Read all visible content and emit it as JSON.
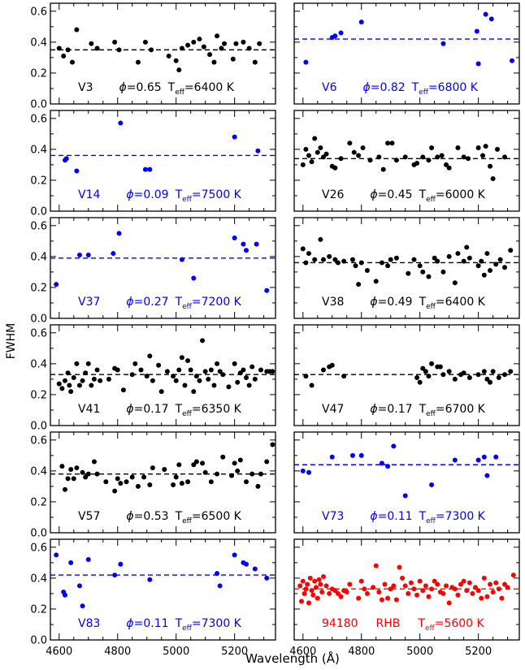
{
  "figure": {
    "ylabel": "FWHM",
    "xlabel": "Wavelength (Å)",
    "x_ticks": [
      4600,
      4800,
      5000,
      5200
    ],
    "y_ticks": [
      "0.0",
      "0.2",
      "0.4",
      "0.6"
    ],
    "colors": {
      "black": "#000000",
      "blue": "#0000ff",
      "red": "#ff0000"
    }
  },
  "chart_data": [
    {
      "type": "scatter",
      "star": "V3",
      "phase": "0.65",
      "teff": "6400",
      "color": "#000000",
      "mean_fwhm": 0.35,
      "xlim": [
        4570,
        5340
      ],
      "ylim": [
        0,
        0.62
      ],
      "x": [
        4600,
        4615,
        4630,
        4645,
        4660,
        4710,
        4730,
        4790,
        4805,
        4870,
        4895,
        4915,
        4975,
        5000,
        5010,
        5020,
        5040,
        5060,
        5080,
        5095,
        5115,
        5130,
        5140,
        5155,
        5165,
        5195,
        5205,
        5230,
        5250,
        5270,
        5285
      ],
      "y": [
        0.36,
        0.31,
        0.35,
        0.27,
        0.48,
        0.39,
        0.36,
        0.4,
        0.35,
        0.27,
        0.4,
        0.35,
        0.31,
        0.28,
        0.22,
        0.36,
        0.38,
        0.4,
        0.42,
        0.37,
        0.32,
        0.27,
        0.44,
        0.36,
        0.39,
        0.29,
        0.39,
        0.4,
        0.36,
        0.27,
        0.39
      ]
    },
    {
      "type": "scatter",
      "star": "V6",
      "phase": "0.82",
      "teff": "6800",
      "color": "#0000ff",
      "mean_fwhm": 0.42,
      "xlim": [
        4570,
        5340
      ],
      "ylim": [
        0,
        0.62
      ],
      "x": [
        4610,
        4700,
        4710,
        4730,
        4800,
        5080,
        5195,
        5200,
        5225,
        5245,
        5315
      ],
      "y": [
        0.27,
        0.43,
        0.44,
        0.46,
        0.53,
        0.39,
        0.47,
        0.26,
        0.58,
        0.55,
        0.28
      ]
    },
    {
      "type": "scatter",
      "star": "V14",
      "phase": "0.09",
      "teff": "7500",
      "color": "#0000ff",
      "mean_fwhm": 0.36,
      "xlim": [
        4570,
        5340
      ],
      "ylim": [
        0,
        0.62
      ],
      "x": [
        4620,
        4625,
        4660,
        4810,
        4895,
        4910,
        5200,
        5280
      ],
      "y": [
        0.33,
        0.34,
        0.26,
        0.57,
        0.27,
        0.27,
        0.48,
        0.39
      ]
    },
    {
      "type": "scatter",
      "star": "V26",
      "phase": "0.45",
      "teff": "6000",
      "color": "#000000",
      "mean_fwhm": 0.34,
      "xlim": [
        4570,
        5340
      ],
      "ylim": [
        0,
        0.62
      ],
      "x": [
        4600,
        4610,
        4620,
        4630,
        4640,
        4650,
        4660,
        4670,
        4680,
        4700,
        4710,
        4730,
        4760,
        4775,
        4790,
        4805,
        4830,
        4860,
        4875,
        4890,
        4905,
        4920,
        4950,
        4980,
        4990,
        5010,
        5030,
        5040,
        5060,
        5075,
        5090,
        5100,
        5130,
        5150,
        5165,
        5200,
        5215,
        5225,
        5240,
        5250,
        5265,
        5290
      ],
      "y": [
        0.3,
        0.4,
        0.36,
        0.32,
        0.47,
        0.38,
        0.41,
        0.35,
        0.37,
        0.29,
        0.28,
        0.34,
        0.44,
        0.38,
        0.36,
        0.41,
        0.33,
        0.35,
        0.27,
        0.44,
        0.44,
        0.33,
        0.35,
        0.3,
        0.31,
        0.35,
        0.33,
        0.41,
        0.35,
        0.36,
        0.3,
        0.28,
        0.41,
        0.35,
        0.34,
        0.41,
        0.36,
        0.42,
        0.29,
        0.21,
        0.4,
        0.35
      ]
    },
    {
      "type": "scatter",
      "star": "V37",
      "phase": "0.27",
      "teff": "7200",
      "color": "#0000ff",
      "mean_fwhm": 0.39,
      "xlim": [
        4570,
        5340
      ],
      "ylim": [
        0,
        0.62
      ],
      "x": [
        4590,
        4670,
        4700,
        4785,
        4805,
        5020,
        5060,
        5200,
        5230,
        5240,
        5275,
        5310
      ],
      "y": [
        0.22,
        0.41,
        0.41,
        0.42,
        0.55,
        0.38,
        0.26,
        0.52,
        0.48,
        0.44,
        0.48,
        0.18
      ]
    },
    {
      "type": "scatter",
      "star": "V38",
      "phase": "0.49",
      "teff": "6400",
      "color": "#000000",
      "mean_fwhm": 0.36,
      "xlim": [
        4570,
        5340
      ],
      "ylim": [
        0,
        0.62
      ],
      "x": [
        4600,
        4610,
        4620,
        4640,
        4660,
        4670,
        4690,
        4710,
        4720,
        4740,
        4770,
        4780,
        4790,
        4800,
        4820,
        4850,
        4870,
        4890,
        4900,
        4920,
        4960,
        4980,
        5000,
        5010,
        5030,
        5050,
        5060,
        5080,
        5100,
        5120,
        5130,
        5150,
        5160,
        5170,
        5200,
        5210,
        5220,
        5230,
        5240,
        5260,
        5275,
        5290,
        5310
      ],
      "y": [
        0.45,
        0.36,
        0.42,
        0.38,
        0.51,
        0.38,
        0.4,
        0.38,
        0.36,
        0.37,
        0.38,
        0.34,
        0.22,
        0.36,
        0.31,
        0.24,
        0.36,
        0.34,
        0.38,
        0.39,
        0.29,
        0.38,
        0.34,
        0.3,
        0.27,
        0.39,
        0.37,
        0.3,
        0.4,
        0.23,
        0.42,
        0.37,
        0.46,
        0.39,
        0.34,
        0.37,
        0.28,
        0.42,
        0.31,
        0.35,
        0.38,
        0.33,
        0.44
      ]
    },
    {
      "type": "scatter",
      "star": "V41",
      "phase": "0.17",
      "teff": "6350",
      "color": "#000000",
      "mean_fwhm": 0.33,
      "xlim": [
        4570,
        5340
      ],
      "ylim": [
        0,
        0.62
      ],
      "x": [
        4600,
        4610,
        4620,
        4630,
        4635,
        4640,
        4650,
        4660,
        4670,
        4680,
        4690,
        4700,
        4710,
        4720,
        4730,
        4740,
        4770,
        4790,
        4800,
        4820,
        4850,
        4860,
        4880,
        4900,
        4910,
        4920,
        4940,
        4950,
        4970,
        4990,
        5000,
        5010,
        5020,
        5030,
        5040,
        5050,
        5060,
        5070,
        5080,
        5090,
        5100,
        5110,
        5120,
        5130,
        5140,
        5150,
        5160,
        5180,
        5200,
        5210,
        5220,
        5230,
        5240,
        5250,
        5260,
        5270,
        5290,
        5310,
        5320,
        5330
      ],
      "y": [
        0.27,
        0.24,
        0.29,
        0.34,
        0.26,
        0.22,
        0.31,
        0.4,
        0.26,
        0.29,
        0.34,
        0.4,
        0.26,
        0.3,
        0.36,
        0.29,
        0.3,
        0.37,
        0.36,
        0.23,
        0.33,
        0.4,
        0.36,
        0.32,
        0.45,
        0.29,
        0.39,
        0.22,
        0.35,
        0.32,
        0.29,
        0.36,
        0.44,
        0.26,
        0.42,
        0.36,
        0.22,
        0.32,
        0.29,
        0.55,
        0.35,
        0.3,
        0.36,
        0.26,
        0.4,
        0.35,
        0.33,
        0.25,
        0.4,
        0.28,
        0.34,
        0.36,
        0.31,
        0.26,
        0.38,
        0.3,
        0.36,
        0.35,
        0.35,
        0.35
      ]
    },
    {
      "type": "scatter",
      "star": "V47",
      "phase": "0.17",
      "teff": "6700",
      "color": "#000000",
      "mean_fwhm": 0.33,
      "xlim": [
        4570,
        5340
      ],
      "ylim": [
        0,
        0.62
      ],
      "x": [
        4610,
        4630,
        4670,
        4690,
        4700,
        4740,
        4990,
        5000,
        5010,
        5020,
        5030,
        5040,
        5060,
        5070,
        5080,
        5100,
        5120,
        5140,
        5150,
        5170,
        5200,
        5220,
        5230,
        5240,
        5250,
        5270,
        5290,
        5310
      ],
      "y": [
        0.32,
        0.26,
        0.36,
        0.38,
        0.39,
        0.32,
        0.31,
        0.28,
        0.37,
        0.35,
        0.32,
        0.4,
        0.38,
        0.38,
        0.33,
        0.35,
        0.3,
        0.33,
        0.34,
        0.31,
        0.33,
        0.35,
        0.3,
        0.28,
        0.35,
        0.31,
        0.33,
        0.35
      ]
    },
    {
      "type": "scatter",
      "star": "V57",
      "phase": "0.53",
      "teff": "6500",
      "color": "#000000",
      "mean_fwhm": 0.38,
      "xlim": [
        4570,
        5340
      ],
      "ylim": [
        0,
        0.62
      ],
      "x": [
        4610,
        4620,
        4630,
        4640,
        4650,
        4660,
        4680,
        4690,
        4700,
        4720,
        4730,
        4760,
        4790,
        4800,
        4810,
        4830,
        4850,
        4870,
        4890,
        4910,
        4920,
        4960,
        4990,
        5000,
        5010,
        5020,
        5040,
        5060,
        5070,
        5090,
        5100,
        5120,
        5140,
        5160,
        5190,
        5200,
        5210,
        5220,
        5240,
        5260,
        5280,
        5290,
        5310,
        5330
      ],
      "y": [
        0.43,
        0.28,
        0.35,
        0.41,
        0.35,
        0.42,
        0.39,
        0.36,
        0.38,
        0.46,
        0.38,
        0.33,
        0.27,
        0.35,
        0.32,
        0.33,
        0.36,
        0.3,
        0.36,
        0.31,
        0.42,
        0.41,
        0.31,
        0.36,
        0.44,
        0.32,
        0.33,
        0.44,
        0.46,
        0.45,
        0.39,
        0.33,
        0.38,
        0.49,
        0.37,
        0.45,
        0.4,
        0.47,
        0.33,
        0.38,
        0.3,
        0.38,
        0.46,
        0.57
      ]
    },
    {
      "type": "scatter",
      "star": "V73",
      "phase": "0.11",
      "teff": "7300",
      "color": "#0000ff",
      "mean_fwhm": 0.44,
      "xlim": [
        4570,
        5340
      ],
      "ylim": [
        0,
        0.62
      ],
      "x": [
        4600,
        4620,
        4700,
        4770,
        4800,
        4870,
        4890,
        4910,
        4950,
        5040,
        5120,
        5200,
        5220,
        5230,
        5260
      ],
      "y": [
        0.4,
        0.39,
        0.49,
        0.5,
        0.5,
        0.45,
        0.43,
        0.56,
        0.24,
        0.31,
        0.47,
        0.47,
        0.49,
        0.37,
        0.49
      ]
    },
    {
      "type": "scatter",
      "star": "V83",
      "phase": "0.11",
      "teff": "7300",
      "color": "#0000ff",
      "mean_fwhm": 0.42,
      "xlim": [
        4570,
        5340
      ],
      "ylim": [
        0,
        0.62
      ],
      "x": [
        4590,
        4615,
        4620,
        4640,
        4670,
        4680,
        4700,
        4790,
        4810,
        4910,
        5140,
        5150,
        5200,
        5230,
        5240,
        5270,
        5310
      ],
      "y": [
        0.55,
        0.31,
        0.29,
        0.5,
        0.35,
        0.22,
        0.52,
        0.42,
        0.49,
        0.39,
        0.43,
        0.35,
        0.55,
        0.5,
        0.49,
        0.46,
        0.4
      ]
    },
    {
      "type": "scatter",
      "star": "94180",
      "star_class": "RHB",
      "teff": "5600",
      "color": "#ff0000",
      "mean_fwhm": 0.33,
      "xlim": [
        4570,
        5340
      ],
      "ylim": [
        0,
        0.62
      ],
      "x": [
        4590,
        4595,
        4600,
        4605,
        4610,
        4615,
        4620,
        4625,
        4630,
        4635,
        4640,
        4645,
        4650,
        4655,
        4660,
        4665,
        4670,
        4680,
        4690,
        4700,
        4710,
        4720,
        4730,
        4740,
        4750,
        4760,
        4790,
        4800,
        4810,
        4820,
        4840,
        4850,
        4860,
        4870,
        4880,
        4890,
        4900,
        4910,
        4920,
        4930,
        4940,
        4950,
        4960,
        4970,
        4980,
        4990,
        5000,
        5010,
        5020,
        5030,
        5040,
        5050,
        5060,
        5070,
        5080,
        5090,
        5100,
        5110,
        5120,
        5130,
        5140,
        5150,
        5160,
        5170,
        5180,
        5190,
        5200,
        5210,
        5220,
        5230,
        5240,
        5250,
        5260,
        5270,
        5280,
        5290,
        5300,
        5320
      ],
      "y": [
        0.35,
        0.25,
        0.38,
        0.3,
        0.33,
        0.36,
        0.24,
        0.4,
        0.32,
        0.29,
        0.38,
        0.34,
        0.27,
        0.39,
        0.36,
        0.31,
        0.41,
        0.35,
        0.3,
        0.33,
        0.32,
        0.3,
        0.28,
        0.32,
        0.31,
        0.36,
        0.27,
        0.38,
        0.33,
        0.3,
        0.34,
        0.48,
        0.31,
        0.26,
        0.36,
        0.27,
        0.33,
        0.35,
        0.26,
        0.47,
        0.4,
        0.35,
        0.3,
        0.37,
        0.33,
        0.29,
        0.38,
        0.32,
        0.35,
        0.28,
        0.33,
        0.38,
        0.36,
        0.31,
        0.3,
        0.35,
        0.24,
        0.34,
        0.33,
        0.29,
        0.36,
        0.38,
        0.32,
        0.37,
        0.3,
        0.34,
        0.32,
        0.27,
        0.4,
        0.28,
        0.36,
        0.31,
        0.37,
        0.33,
        0.27,
        0.36,
        0.34,
        0.42
      ]
    }
  ]
}
